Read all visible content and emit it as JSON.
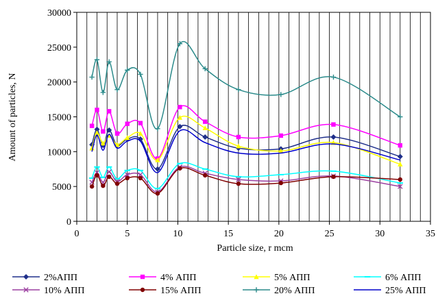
{
  "chart_data": {
    "type": "line",
    "xlabel": "Particle size, r mcm",
    "ylabel": "Amount of particles, N",
    "xlim": [
      0,
      35
    ],
    "ylim": [
      0,
      30000
    ],
    "x_ticks": [
      "0",
      "5",
      "10",
      "15",
      "20",
      "25",
      "30",
      "35"
    ],
    "y_ticks": [
      "0",
      "5000",
      "10000",
      "15000",
      "20000",
      "25000",
      "30000"
    ],
    "grid": "vertical",
    "legend_position": "bottom",
    "smooth": true,
    "series": [
      {
        "name": "2%АПП",
        "color": "#1f2f8a",
        "marker": "diamond",
        "points": [
          [
            1.5,
            11000
          ],
          [
            2,
            13200
          ],
          [
            2.6,
            10900
          ],
          [
            3.2,
            13100
          ],
          [
            4,
            10900
          ],
          [
            5,
            11800
          ],
          [
            6.3,
            11800
          ],
          [
            8,
            7500
          ],
          [
            10.2,
            13600
          ],
          [
            12.7,
            12100
          ],
          [
            16,
            10500
          ],
          [
            20.2,
            10400
          ],
          [
            25.4,
            12100
          ],
          [
            32,
            9300
          ]
        ]
      },
      {
        "name": "4% АПП",
        "color": "#ff00ff",
        "marker": "square",
        "points": [
          [
            1.5,
            13700
          ],
          [
            2,
            16000
          ],
          [
            2.6,
            12900
          ],
          [
            3.2,
            15800
          ],
          [
            4,
            12600
          ],
          [
            5,
            14000
          ],
          [
            6.3,
            14100
          ],
          [
            8,
            9000
          ],
          [
            10.2,
            16400
          ],
          [
            12.7,
            14300
          ],
          [
            16,
            12100
          ],
          [
            20.2,
            12300
          ],
          [
            25.4,
            13900
          ],
          [
            32,
            10900
          ]
        ]
      },
      {
        "name": "5% АПП",
        "color": "#ffff00",
        "marker": "triangle",
        "points": [
          [
            1.5,
            10500
          ],
          [
            2,
            12700
          ],
          [
            2.6,
            11200
          ],
          [
            3.2,
            12300
          ],
          [
            4,
            11000
          ],
          [
            5,
            12000
          ],
          [
            6.3,
            12600
          ],
          [
            8,
            8800
          ],
          [
            10.2,
            14900
          ],
          [
            12.7,
            13400
          ],
          [
            16,
            10800
          ],
          [
            20.2,
            10100
          ],
          [
            25.4,
            11300
          ],
          [
            32,
            8200
          ]
        ]
      },
      {
        "name": "6% АПП",
        "color": "#00ffff",
        "marker": "dash",
        "points": [
          [
            1.5,
            6200
          ],
          [
            2,
            7800
          ],
          [
            2.6,
            6300
          ],
          [
            3.2,
            7800
          ],
          [
            4,
            6100
          ],
          [
            5,
            7300
          ],
          [
            6.3,
            7300
          ],
          [
            8,
            4700
          ],
          [
            10.2,
            8300
          ],
          [
            12.7,
            7500
          ],
          [
            16,
            6400
          ],
          [
            20.2,
            6700
          ],
          [
            25.4,
            7200
          ],
          [
            32,
            5500
          ]
        ]
      },
      {
        "name": "10% АПП",
        "color": "#9b3fa0",
        "marker": "x",
        "points": [
          [
            1.5,
            5600
          ],
          [
            2,
            7000
          ],
          [
            2.6,
            5600
          ],
          [
            3.2,
            7100
          ],
          [
            4,
            5700
          ],
          [
            5,
            6700
          ],
          [
            6.3,
            6700
          ],
          [
            8,
            4200
          ],
          [
            10.2,
            7800
          ],
          [
            12.7,
            6900
          ],
          [
            16,
            6000
          ],
          [
            20.2,
            5800
          ],
          [
            25.4,
            6500
          ],
          [
            32,
            5000
          ]
        ]
      },
      {
        "name": "15% АПП",
        "color": "#800000",
        "marker": "circle",
        "points": [
          [
            1.5,
            5000
          ],
          [
            2,
            6600
          ],
          [
            2.6,
            5100
          ],
          [
            3.2,
            6400
          ],
          [
            4,
            5400
          ],
          [
            5,
            6200
          ],
          [
            6.3,
            6200
          ],
          [
            8,
            4000
          ],
          [
            10.2,
            7600
          ],
          [
            12.7,
            6600
          ],
          [
            16,
            5400
          ],
          [
            20.2,
            5500
          ],
          [
            25.4,
            6400
          ],
          [
            32,
            6000
          ]
        ]
      },
      {
        "name": "20% АПП",
        "color": "#2a8a8a",
        "marker": "plus",
        "points": [
          [
            1.5,
            20700
          ],
          [
            2,
            23200
          ],
          [
            2.6,
            18500
          ],
          [
            3.2,
            22900
          ],
          [
            4,
            18900
          ],
          [
            5,
            21700
          ],
          [
            6.3,
            21100
          ],
          [
            8,
            13300
          ],
          [
            10.2,
            25500
          ],
          [
            12.7,
            21900
          ],
          [
            16,
            18900
          ],
          [
            20.2,
            18200
          ],
          [
            25.4,
            20700
          ],
          [
            32,
            15000
          ]
        ]
      },
      {
        "name": "25% АПП",
        "color": "#0000cc",
        "marker": "none",
        "points": [
          [
            1.5,
            10000
          ],
          [
            2,
            12400
          ],
          [
            2.6,
            10200
          ],
          [
            3.2,
            12500
          ],
          [
            4,
            10500
          ],
          [
            5,
            11500
          ],
          [
            6.3,
            11500
          ],
          [
            8,
            7000
          ],
          [
            10.2,
            13000
          ],
          [
            12.7,
            11300
          ],
          [
            16,
            9800
          ],
          [
            20.2,
            9800
          ],
          [
            25.4,
            11100
          ],
          [
            32,
            8800
          ]
        ]
      }
    ]
  }
}
